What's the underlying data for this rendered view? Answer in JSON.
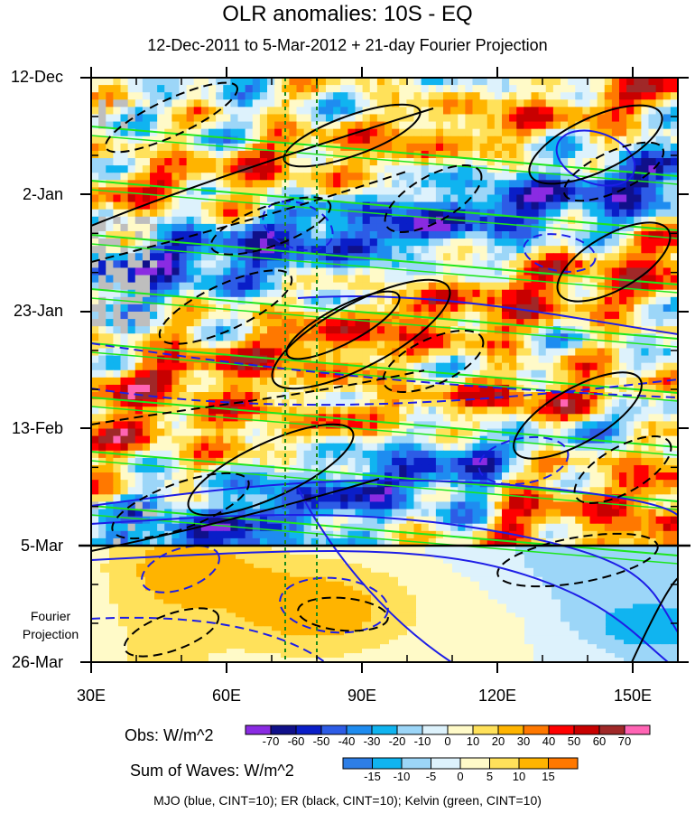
{
  "chart_data": {
    "type": "heatmap",
    "title": "OLR anomalies: 10S - EQ",
    "subtitle": "12-Dec-2011 to 5-Mar-2012 + 21-day Fourier Projection",
    "x_axis": {
      "label": "",
      "range": [
        30,
        160
      ],
      "ticks": [
        "30E",
        "60E",
        "90E",
        "120E",
        "150E"
      ],
      "tick_values": [
        30,
        60,
        90,
        120,
        150
      ]
    },
    "y_axis": {
      "ticks": [
        "12-Dec",
        "2-Jan",
        "23-Jan",
        "13-Feb",
        "5-Mar",
        "26-Mar"
      ],
      "reversed": true
    },
    "projection_label": [
      "Fourier",
      "Projection"
    ],
    "vertical_reference_lines_longitude": [
      73,
      80
    ],
    "observed_colorbar": {
      "label": "Obs: W/m^2",
      "levels": [
        "-70",
        "-60",
        "-50",
        "-40",
        "-30",
        "-20",
        "-10",
        "0",
        "10",
        "20",
        "30",
        "40",
        "50",
        "60",
        "70"
      ],
      "colors": [
        "#8a2be2",
        "#10108a",
        "#0a1ec8",
        "#2d5ce6",
        "#1e8cf0",
        "#10b4f0",
        "#9cd6f8",
        "#ddf2fc",
        "#fffac8",
        "#ffe15a",
        "#ffb400",
        "#ff7800",
        "#ff0000",
        "#c80000",
        "#a02828",
        "#ff64b4"
      ]
    },
    "waves_colorbar": {
      "label": "Sum of Waves: W/m^2",
      "levels": [
        "-15",
        "-10",
        "-5",
        "0",
        "5",
        "10",
        "15"
      ],
      "colors": [
        "#2d7ee6",
        "#10b4f0",
        "#9cd6f8",
        "#ddf2fc",
        "#fffac8",
        "#ffe15a",
        "#ffb400",
        "#ff7800"
      ]
    },
    "contours": [
      {
        "name": "MJO",
        "color": "blue",
        "cint": 10
      },
      {
        "name": "ER",
        "color": "black",
        "cint": 10
      },
      {
        "name": "Kelvin",
        "color": "green",
        "cint": 10
      }
    ],
    "footer": "MJO (blue, CINT=10); ER (black, CINT=10); Kelvin (green, CINT=10)"
  },
  "colors": {
    "mjo": "#1e1ee6",
    "er": "#000000",
    "kelvin": "#1ee61e",
    "ref_line": "#1a8a1a",
    "missing": "#bebebe"
  }
}
